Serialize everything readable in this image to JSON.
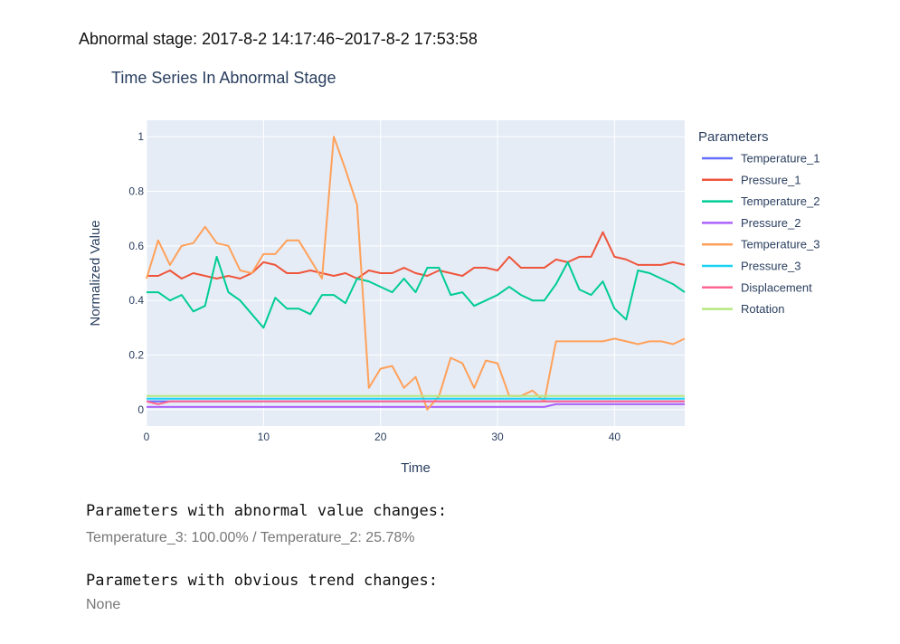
{
  "stage_label": "Abnormal stage: 2017-8-2 14:17:46~2017-8-2 17:53:58",
  "chart_data": {
    "type": "line",
    "title": "Time Series In Abnormal Stage",
    "xlabel": "Time",
    "ylabel": "Normalized Value",
    "xlim": [
      0,
      46
    ],
    "ylim": [
      -0.06,
      1.06
    ],
    "x_ticks": [
      0,
      10,
      20,
      30,
      40
    ],
    "y_ticks": [
      0,
      0.2,
      0.4,
      0.6,
      0.8,
      1
    ],
    "y_tick_labels": [
      "0",
      "0.2",
      "0.4",
      "0.6",
      "0.8",
      "1"
    ],
    "grid": true,
    "legend_title": "Parameters",
    "legend_placement": "right",
    "series": [
      {
        "name": "Temperature_1",
        "color": "#636efa",
        "values": [
          0.03,
          0.03,
          0.03,
          0.03,
          0.03,
          0.03,
          0.03,
          0.03,
          0.03,
          0.03,
          0.03,
          0.03,
          0.03,
          0.03,
          0.03,
          0.03,
          0.03,
          0.03,
          0.03,
          0.03,
          0.03,
          0.03,
          0.03,
          0.03,
          0.03,
          0.03,
          0.03,
          0.03,
          0.03,
          0.03,
          0.03,
          0.03,
          0.03,
          0.03,
          0.03,
          0.03,
          0.03,
          0.03,
          0.03,
          0.03,
          0.03,
          0.03,
          0.03,
          0.03,
          0.03,
          0.03,
          0.03
        ]
      },
      {
        "name": "Pressure_1",
        "color": "#ef553b",
        "values": [
          0.49,
          0.49,
          0.51,
          0.48,
          0.5,
          0.49,
          0.48,
          0.49,
          0.48,
          0.5,
          0.54,
          0.53,
          0.5,
          0.5,
          0.51,
          0.5,
          0.49,
          0.5,
          0.48,
          0.51,
          0.5,
          0.5,
          0.52,
          0.5,
          0.49,
          0.51,
          0.5,
          0.49,
          0.52,
          0.52,
          0.51,
          0.56,
          0.52,
          0.52,
          0.52,
          0.55,
          0.54,
          0.56,
          0.56,
          0.65,
          0.56,
          0.55,
          0.53,
          0.53,
          0.53,
          0.54,
          0.53
        ]
      },
      {
        "name": "Temperature_2",
        "color": "#00cc96",
        "values": [
          0.43,
          0.43,
          0.4,
          0.42,
          0.36,
          0.38,
          0.56,
          0.43,
          0.4,
          0.35,
          0.3,
          0.41,
          0.37,
          0.37,
          0.35,
          0.42,
          0.42,
          0.39,
          0.48,
          0.47,
          0.45,
          0.43,
          0.48,
          0.43,
          0.52,
          0.52,
          0.42,
          0.43,
          0.38,
          0.4,
          0.42,
          0.45,
          0.42,
          0.4,
          0.4,
          0.46,
          0.54,
          0.44,
          0.42,
          0.47,
          0.37,
          0.33,
          0.51,
          0.5,
          0.48,
          0.46,
          0.43
        ]
      },
      {
        "name": "Pressure_2",
        "color": "#ab63fa",
        "values": [
          0.01,
          0.01,
          0.01,
          0.01,
          0.01,
          0.01,
          0.01,
          0.01,
          0.01,
          0.01,
          0.01,
          0.01,
          0.01,
          0.01,
          0.01,
          0.01,
          0.01,
          0.01,
          0.01,
          0.01,
          0.01,
          0.01,
          0.01,
          0.01,
          0.01,
          0.01,
          0.01,
          0.01,
          0.01,
          0.01,
          0.01,
          0.01,
          0.01,
          0.01,
          0.01,
          0.02,
          0.02,
          0.02,
          0.02,
          0.02,
          0.02,
          0.02,
          0.02,
          0.02,
          0.02,
          0.02,
          0.02
        ]
      },
      {
        "name": "Temperature_3",
        "color": "#ffa15a",
        "values": [
          0.48,
          0.62,
          0.53,
          0.6,
          0.61,
          0.67,
          0.61,
          0.6,
          0.51,
          0.5,
          0.57,
          0.57,
          0.62,
          0.62,
          0.55,
          0.48,
          1.0,
          0.88,
          0.75,
          0.08,
          0.15,
          0.16,
          0.08,
          0.12,
          0.0,
          0.05,
          0.19,
          0.17,
          0.08,
          0.18,
          0.17,
          0.05,
          0.05,
          0.07,
          0.03,
          0.25,
          0.25,
          0.25,
          0.25,
          0.25,
          0.26,
          0.25,
          0.24,
          0.25,
          0.25,
          0.24,
          0.26
        ]
      },
      {
        "name": "Pressure_3",
        "color": "#19d3f3",
        "values": [
          0.04,
          0.04,
          0.04,
          0.04,
          0.04,
          0.04,
          0.04,
          0.04,
          0.04,
          0.04,
          0.04,
          0.04,
          0.04,
          0.04,
          0.04,
          0.04,
          0.04,
          0.04,
          0.04,
          0.04,
          0.04,
          0.04,
          0.04,
          0.04,
          0.04,
          0.04,
          0.04,
          0.04,
          0.04,
          0.04,
          0.04,
          0.04,
          0.04,
          0.04,
          0.04,
          0.04,
          0.04,
          0.04,
          0.04,
          0.04,
          0.04,
          0.04,
          0.04,
          0.04,
          0.04,
          0.04,
          0.04
        ]
      },
      {
        "name": "Displacement",
        "color": "#ff6692",
        "values": [
          0.03,
          0.02,
          0.03,
          0.03,
          0.03,
          0.03,
          0.03,
          0.03,
          0.03,
          0.03,
          0.03,
          0.03,
          0.03,
          0.03,
          0.03,
          0.03,
          0.03,
          0.03,
          0.03,
          0.03,
          0.03,
          0.03,
          0.03,
          0.03,
          0.03,
          0.03,
          0.03,
          0.03,
          0.03,
          0.03,
          0.03,
          0.03,
          0.03,
          0.03,
          0.03,
          0.03,
          0.03,
          0.03,
          0.03,
          0.03,
          0.03,
          0.03,
          0.03,
          0.03,
          0.03,
          0.03,
          0.03
        ]
      },
      {
        "name": "Rotation",
        "color": "#b6e880",
        "values": [
          0.05,
          0.05,
          0.05,
          0.05,
          0.05,
          0.05,
          0.05,
          0.05,
          0.05,
          0.05,
          0.05,
          0.05,
          0.05,
          0.05,
          0.05,
          0.05,
          0.05,
          0.05,
          0.05,
          0.05,
          0.05,
          0.05,
          0.05,
          0.05,
          0.05,
          0.05,
          0.05,
          0.05,
          0.05,
          0.05,
          0.05,
          0.05,
          0.05,
          0.05,
          0.05,
          0.05,
          0.05,
          0.05,
          0.05,
          0.05,
          0.05,
          0.05,
          0.05,
          0.05,
          0.05,
          0.05,
          0.05
        ]
      }
    ]
  },
  "abnormal_section": {
    "heading": "Parameters with abnormal value changes:",
    "value": "Temperature_3: 100.00% / Temperature_2: 25.78%"
  },
  "trend_section": {
    "heading": "Parameters with obvious trend changes:",
    "value": "None"
  },
  "colors": {
    "plot_background": "#e5ecf6",
    "grid": "#ffffff"
  }
}
